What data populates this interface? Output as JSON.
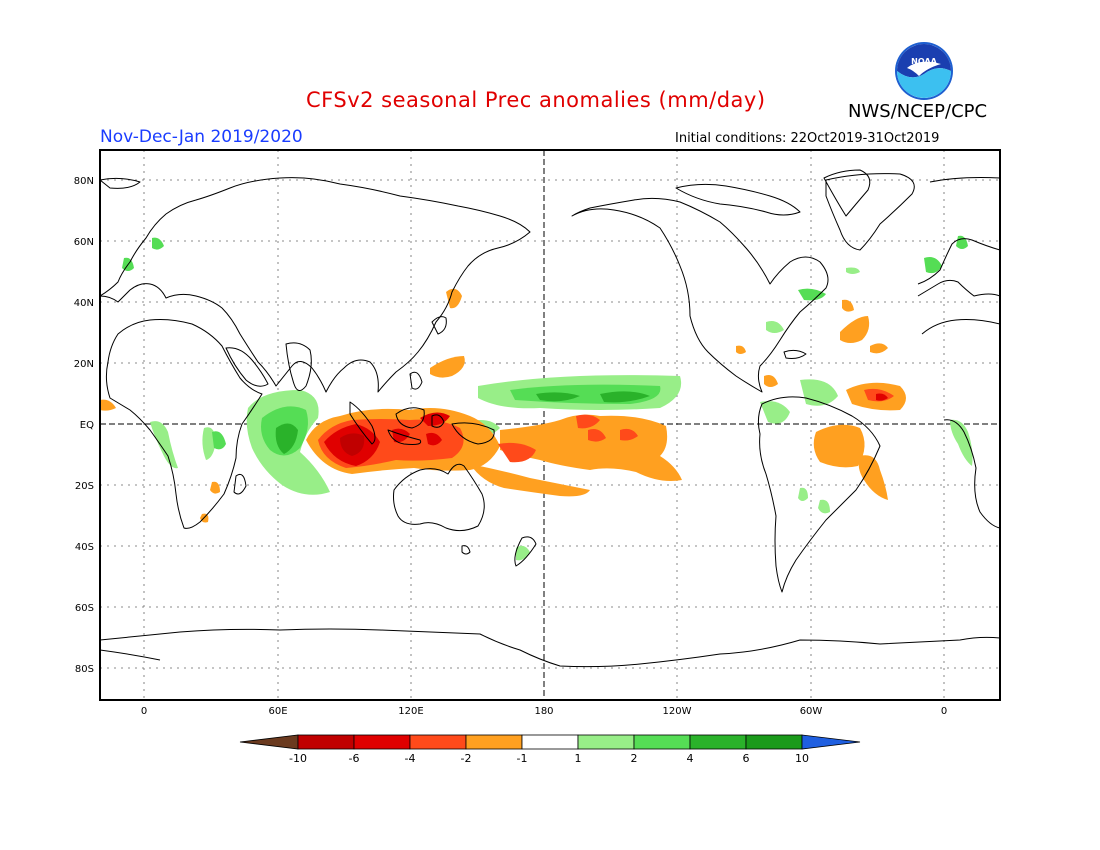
{
  "header": {
    "title": "CFSv2 seasonal Prec anomalies (mm/day)",
    "period": "Nov-Dec-Jan 2019/2020",
    "initial_conditions": "Initial conditions: 22Oct2019-31Oct2019",
    "agency": "NWS/NCEP/CPC",
    "logo_text": "NOAA"
  },
  "map": {
    "projection": "equirectangular",
    "lat_ticks": [
      "80N",
      "60N",
      "40N",
      "20N",
      "EQ",
      "20S",
      "40S",
      "60S",
      "80S"
    ],
    "lon_ticks": [
      "0",
      "60E",
      "120E",
      "180",
      "120W",
      "60W",
      "0"
    ],
    "grid": "dotted"
  },
  "colorbar": {
    "labels": [
      "-10",
      "-6",
      "-4",
      "-2",
      "-1",
      "1",
      "2",
      "4",
      "6",
      "10"
    ],
    "colors": [
      "#6b3a1f",
      "#c00000",
      "#e00000",
      "#ff4a1a",
      "#ffa020",
      "#ffffff",
      "#98ee88",
      "#55dd55",
      "#2ab22a",
      "#1a9a1a",
      "#1f5fe0"
    ]
  }
}
